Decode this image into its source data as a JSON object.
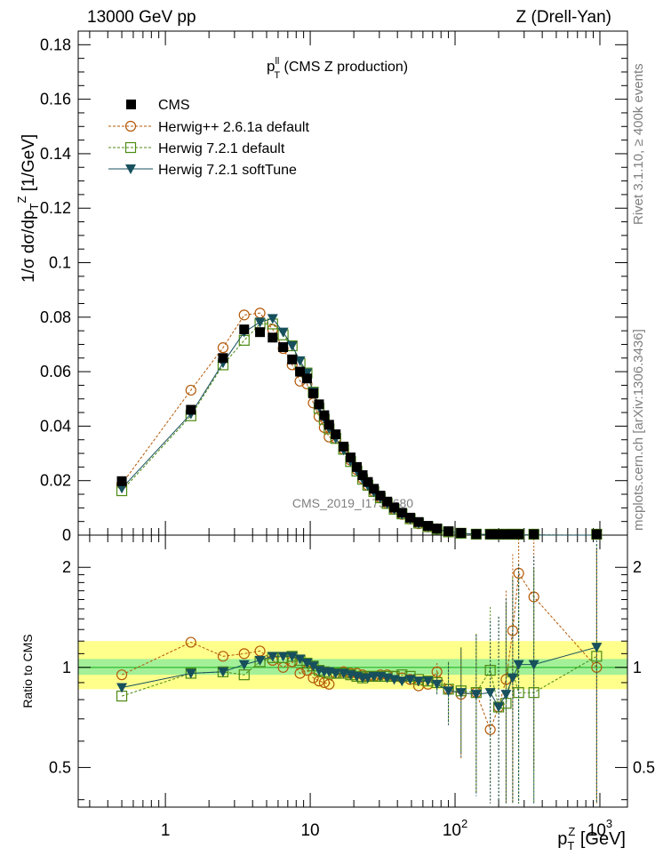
{
  "header": {
    "left": "13000 GeV pp",
    "right": "Z (Drell-Yan)"
  },
  "side_text": {
    "rivet": "Rivet 3.1.10, ≥ 400k events",
    "mcplots": "mcplots.cern.ch [arXiv:1306.3436]"
  },
  "watermark": "CMS_2019_I1753680",
  "main_panel": {
    "ylabel": "1/σ dσ/dp",
    "ylabel_sub": "T",
    "ylabel_sup": "Z",
    "ylabel_unit": " [1/GeV]",
    "plot_title_main": "p",
    "plot_title_sup": "ll",
    "plot_title_sub": "T",
    "plot_title_rest": " (CMS Z production)",
    "y_ticks": [
      "0",
      "0.02",
      "0.04",
      "0.06",
      "0.08",
      "0.1",
      "0.12",
      "0.14",
      "0.16",
      "0.18"
    ],
    "ylim": [
      0,
      0.185
    ]
  },
  "ratio_panel": {
    "ylabel": "Ratio to CMS",
    "y_ticks": [
      "0.5",
      "1",
      "2"
    ],
    "ylim": [
      0.38,
      2.5
    ]
  },
  "x_axis": {
    "label_main": "p",
    "label_sub": "T",
    "label_sup": "Z",
    "label_unit": " [GeV]",
    "xlim": [
      0.25,
      1550
    ],
    "tick_labels": [
      {
        "base": "1",
        "exp": ""
      },
      {
        "base": "10",
        "exp": ""
      },
      {
        "base": "10",
        "exp": "2"
      },
      {
        "base": "10",
        "exp": "3"
      }
    ]
  },
  "legend": [
    {
      "label": "CMS",
      "color": "#000000",
      "marker": "square-filled"
    },
    {
      "label": "Herwig++ 2.6.1a default",
      "color": "#b35806",
      "marker": "circle-open"
    },
    {
      "label": "Herwig 7.2.1 default",
      "color": "#4d8a12",
      "marker": "square-open"
    },
    {
      "label": "Herwig 7.2.1 softTune",
      "color": "#17505c",
      "marker": "triangle-down-filled"
    }
  ],
  "chart_data": {
    "type": "scatter",
    "x_scale": "log",
    "x": [
      0.5,
      1.5,
      2.5,
      3.5,
      4.5,
      5.5,
      6.5,
      7.5,
      8.5,
      9.5,
      10.5,
      11.5,
      12.5,
      13.5,
      15,
      17,
      19,
      21,
      23,
      25,
      27.5,
      30.5,
      34,
      38,
      43,
      49,
      56,
      65,
      75,
      90,
      110,
      140,
      175,
      200,
      225,
      250,
      275,
      350,
      950
    ],
    "series": [
      {
        "name": "CMS",
        "values": [
          0.0198,
          0.046,
          0.065,
          0.0755,
          0.0745,
          0.0725,
          0.069,
          0.0645,
          0.06,
          0.0575,
          0.052,
          0.048,
          0.044,
          0.0405,
          0.037,
          0.0325,
          0.0285,
          0.025,
          0.022,
          0.0195,
          0.017,
          0.0145,
          0.0123,
          0.0101,
          0.0082,
          0.0064,
          0.0048,
          0.0034,
          0.0024,
          0.0014,
          0.0008,
          0.0004,
          0.00021,
          0.00015,
          0.00011,
          8e-05,
          6e-05,
          3e-05,
          4e-06
        ],
        "ratio": [
          1,
          1,
          1,
          1,
          1,
          1,
          1,
          1,
          1,
          1,
          1,
          1,
          1,
          1,
          1,
          1,
          1,
          1,
          1,
          1,
          1,
          1,
          1,
          1,
          1,
          1,
          1,
          1,
          1,
          1,
          1,
          1,
          1,
          1,
          1,
          1,
          1,
          1,
          1
        ]
      },
      {
        "name": "Herwig++ 2.6.1a default",
        "values": [
          0.0188,
          0.0532,
          0.0688,
          0.0808,
          0.0815,
          0.0755,
          0.0685,
          0.0625,
          0.0565,
          0.0555,
          0.0485,
          0.0435,
          0.0395,
          0.036,
          0.0355,
          0.0315,
          0.0275,
          0.024,
          0.0208,
          0.0183,
          0.016,
          0.0138,
          0.0117,
          0.0095,
          0.0076,
          0.0059,
          0.0042,
          0.003,
          0.0023,
          0.0012,
          0.00065,
          0.00034,
          0.000135,
          0.000115,
          0.0001,
          9e-05,
          8e-05,
          5.8e-05,
          6.5e-06
        ],
        "ratio": [
          0.95,
          1.19,
          1.08,
          1.1,
          1.12,
          1.05,
          1.0,
          1.04,
          0.96,
          0.98,
          0.93,
          0.91,
          0.9,
          0.89,
          0.96,
          0.97,
          0.96,
          0.96,
          0.95,
          0.94,
          0.94,
          0.95,
          0.95,
          0.94,
          0.93,
          0.92,
          0.88,
          0.89,
          0.97,
          0.86,
          0.83,
          0.84,
          0.65,
          0.76,
          0.92,
          1.29,
          1.92,
          1.63,
          1.0
        ]
      },
      {
        "name": "Herwig 7.2.1 default",
        "values": [
          0.0163,
          0.0438,
          0.0625,
          0.0715,
          0.0775,
          0.0775,
          0.0735,
          0.0695,
          0.063,
          0.0595,
          0.0525,
          0.0465,
          0.0425,
          0.039,
          0.0355,
          0.0315,
          0.027,
          0.0235,
          0.0205,
          0.0183,
          0.016,
          0.0137,
          0.0116,
          0.0095,
          0.0078,
          0.006,
          0.0044,
          0.0031,
          0.0022,
          0.0012,
          0.00068,
          0.00034,
          0.00019,
          0.00012,
          8.5e-05,
          7e-05,
          5e-05,
          2.5e-05,
          4.5e-06
        ],
        "ratio": [
          0.82,
          0.96,
          0.97,
          0.95,
          1.04,
          1.07,
          1.07,
          1.08,
          1.05,
          1.03,
          1.01,
          0.98,
          0.97,
          0.96,
          0.96,
          0.96,
          0.95,
          0.94,
          0.93,
          0.94,
          0.94,
          0.94,
          0.94,
          0.94,
          0.95,
          0.94,
          0.92,
          0.91,
          0.9,
          0.86,
          0.85,
          0.84,
          0.98,
          0.76,
          0.78,
          0.97,
          0.84,
          0.84,
          1.08
        ]
      },
      {
        "name": "Herwig 7.2.1 softTune",
        "values": [
          0.0172,
          0.0445,
          0.0632,
          0.0745,
          0.0782,
          0.0795,
          0.0745,
          0.0695,
          0.064,
          0.0595,
          0.0525,
          0.047,
          0.0428,
          0.0392,
          0.0355,
          0.0312,
          0.0271,
          0.0236,
          0.0205,
          0.0181,
          0.0158,
          0.0136,
          0.0115,
          0.0094,
          0.0076,
          0.0059,
          0.0043,
          0.003,
          0.0021,
          0.0012,
          0.00068,
          0.00034,
          0.0002,
          0.00012,
          8.5e-05,
          7e-05,
          5e-05,
          3e-05,
          4.5e-06
        ],
        "ratio": [
          0.87,
          0.96,
          0.97,
          1.02,
          1.05,
          1.08,
          1.08,
          1.08,
          1.06,
          1.03,
          1.01,
          0.98,
          0.97,
          0.97,
          0.96,
          0.96,
          0.95,
          0.94,
          0.93,
          0.93,
          0.94,
          0.94,
          0.93,
          0.92,
          0.91,
          0.92,
          0.91,
          0.91,
          0.89,
          0.85,
          0.84,
          0.83,
          0.84,
          0.76,
          0.83,
          0.93,
          1.02,
          1.02,
          1.15
        ]
      }
    ]
  }
}
